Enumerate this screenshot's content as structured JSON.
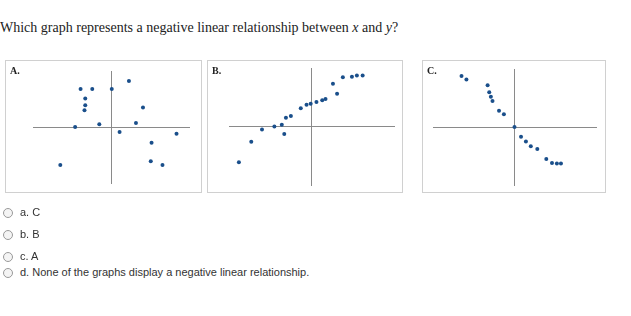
{
  "question": "Which graph represents a negative linear relationship between x and y?",
  "chart_data": [
    {
      "type": "scatter",
      "title": "A.",
      "color": "#1a4f8b",
      "grid": false,
      "tick_labels": false,
      "xlim": [
        -10,
        10
      ],
      "ylim": [
        -10,
        10
      ],
      "x": [
        -3.9,
        -2.4,
        -3.3,
        -3.3,
        -3.4,
        0.1,
        2.3,
        4.1,
        -4.6,
        -1.5,
        1.1,
        3.2,
        5.2,
        8.4,
        5.1,
        6.6,
        -6.5
      ],
      "values": [
        6.8,
        6.8,
        5.1,
        3.9,
        3.0,
        6.8,
        8.2,
        3.5,
        0,
        0.5,
        -0.9,
        0.7,
        -2.8,
        -1.2,
        -6.1,
        -6.8,
        -6.8
      ]
    },
    {
      "type": "scatter",
      "title": "B.",
      "color": "#1a4f8b",
      "grid": false,
      "tick_labels": false,
      "xlim": [
        -10,
        10
      ],
      "ylim": [
        -10,
        10
      ],
      "x": [
        -8.8,
        -7.3,
        -6.0,
        -4.5,
        -3.3,
        -3.6,
        -3.1,
        -2.5,
        -1.3,
        -0.6,
        -0.1,
        0.6,
        1.3,
        1.7,
        2.6,
        3.1,
        3.8,
        4.9,
        5.5,
        6.2
      ],
      "values": [
        -6.1,
        -2.6,
        -0.5,
        0,
        -1.3,
        0.3,
        1.5,
        1.8,
        3.1,
        3.7,
        3.9,
        4.2,
        4.5,
        4.7,
        7.3,
        5.6,
        8.4,
        8.5,
        8.7,
        8.7
      ]
    },
    {
      "type": "scatter",
      "title": "C.",
      "color": "#1a4f8b",
      "grid": false,
      "tick_labels": false,
      "xlim": [
        -10,
        10
      ],
      "ylim": [
        -10,
        10
      ],
      "x": [
        -6.5,
        -5.9,
        -3.3,
        -3.1,
        -2.9,
        -2.7,
        -1.9,
        -1.3,
        0,
        0.8,
        1.4,
        2.0,
        2.8,
        3.9,
        4.6,
        5.2,
        5.7
      ],
      "values": [
        8.8,
        8.2,
        7.2,
        6.0,
        5.2,
        4.5,
        2.8,
        2.2,
        0,
        -1.7,
        -2.5,
        -3.3,
        -3.8,
        -5.5,
        -6.2,
        -6.3,
        -6.3
      ]
    }
  ],
  "options": [
    "a. C",
    "b. B",
    "c. A",
    "d. None of the graphs display a negative linear relationship."
  ]
}
